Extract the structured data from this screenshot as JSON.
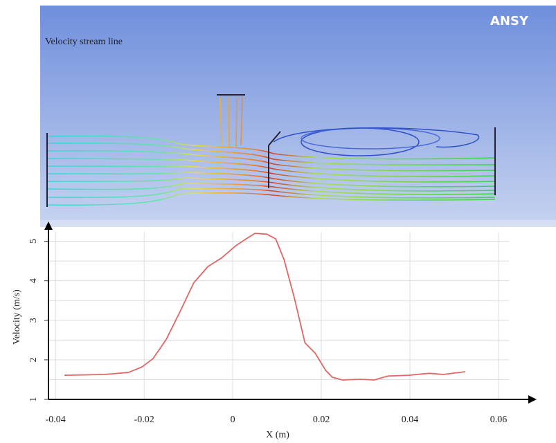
{
  "header": {
    "label": "Velocity stream line",
    "logo": "ANSY"
  },
  "chart_data": {
    "type": "line",
    "y_label": "Velocity (m/s)",
    "x_label": "X (m)",
    "xlim": [
      -0.0416,
      0.0686
    ],
    "ylim": [
      1,
      5.5
    ],
    "xticks": [
      -0.04,
      -0.02,
      0,
      0.02,
      0.04,
      0.06
    ],
    "yticks": [
      1,
      2,
      3,
      4,
      5
    ],
    "yminorticks": [
      1.5,
      2.5,
      3.5,
      4.5
    ],
    "grid": true,
    "series": [
      {
        "color": "#e06666",
        "x": [
          -0.038,
          -0.029,
          -0.0236,
          -0.0205,
          -0.018,
          -0.015,
          -0.0119,
          -0.0088,
          -0.0056,
          -0.0025,
          0.0006,
          0.003,
          0.005,
          0.0077,
          0.0097,
          0.0116,
          0.0139,
          0.0163,
          0.0186,
          0.021,
          0.0225,
          0.0248,
          0.0288,
          0.0319,
          0.035,
          0.0397,
          0.0444,
          0.0475,
          0.0525
        ],
        "values": [
          1.61,
          1.63,
          1.68,
          1.82,
          2.03,
          2.52,
          3.22,
          3.95,
          4.36,
          4.58,
          4.88,
          5.06,
          5.2,
          5.18,
          5.06,
          4.53,
          3.57,
          2.43,
          2.17,
          1.73,
          1.56,
          1.49,
          1.51,
          1.49,
          1.59,
          1.61,
          1.66,
          1.63,
          1.7
        ]
      }
    ]
  }
}
